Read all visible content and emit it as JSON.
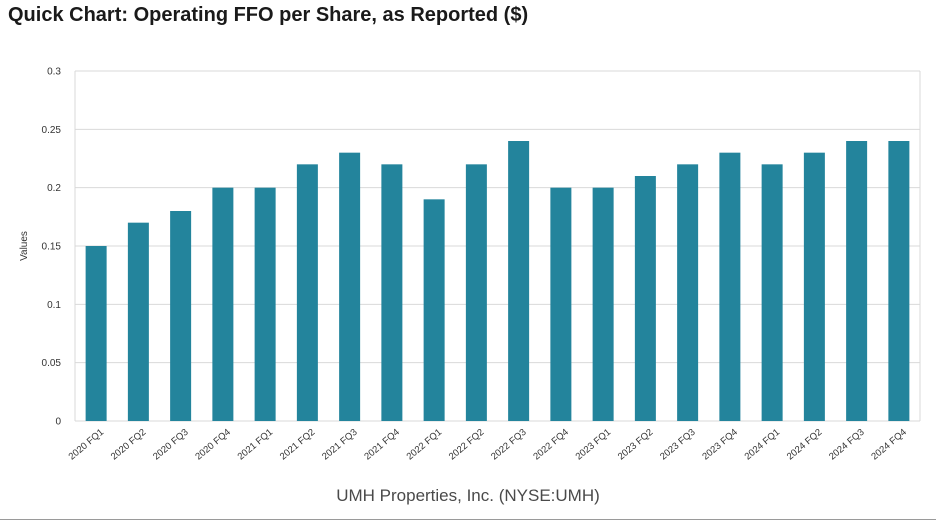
{
  "title": "Quick Chart: Operating FFO per Share, as Reported ($)",
  "chart_data": {
    "type": "bar",
    "title": "Quick Chart: Operating FFO per Share, as Reported ($)",
    "xlabel": "UMH Properties, Inc. (NYSE:UMH)",
    "ylabel": "Values",
    "ylim": [
      0,
      0.3
    ],
    "yticks": [
      "0",
      "0.05",
      "0.1",
      "0.15",
      "0.2",
      "0.25",
      "0.3"
    ],
    "grid": true,
    "bar_color": "#23849c",
    "categories": [
      "2020 FQ1",
      "2020 FQ2",
      "2020 FQ3",
      "2020 FQ4",
      "2021 FQ1",
      "2021 FQ2",
      "2021 FQ3",
      "2021 FQ4",
      "2022 FQ1",
      "2022 FQ2",
      "2022 FQ3",
      "2022 FQ4",
      "2023 FQ1",
      "2023 FQ2",
      "2023 FQ3",
      "2023 FQ4",
      "2024 FQ1",
      "2024 FQ2",
      "2024 FQ3",
      "2024 FQ4"
    ],
    "values": [
      0.15,
      0.17,
      0.18,
      0.2,
      0.2,
      0.22,
      0.23,
      0.22,
      0.19,
      0.22,
      0.24,
      0.2,
      0.2,
      0.21,
      0.22,
      0.23,
      0.22,
      0.23,
      0.24,
      0.24
    ]
  }
}
